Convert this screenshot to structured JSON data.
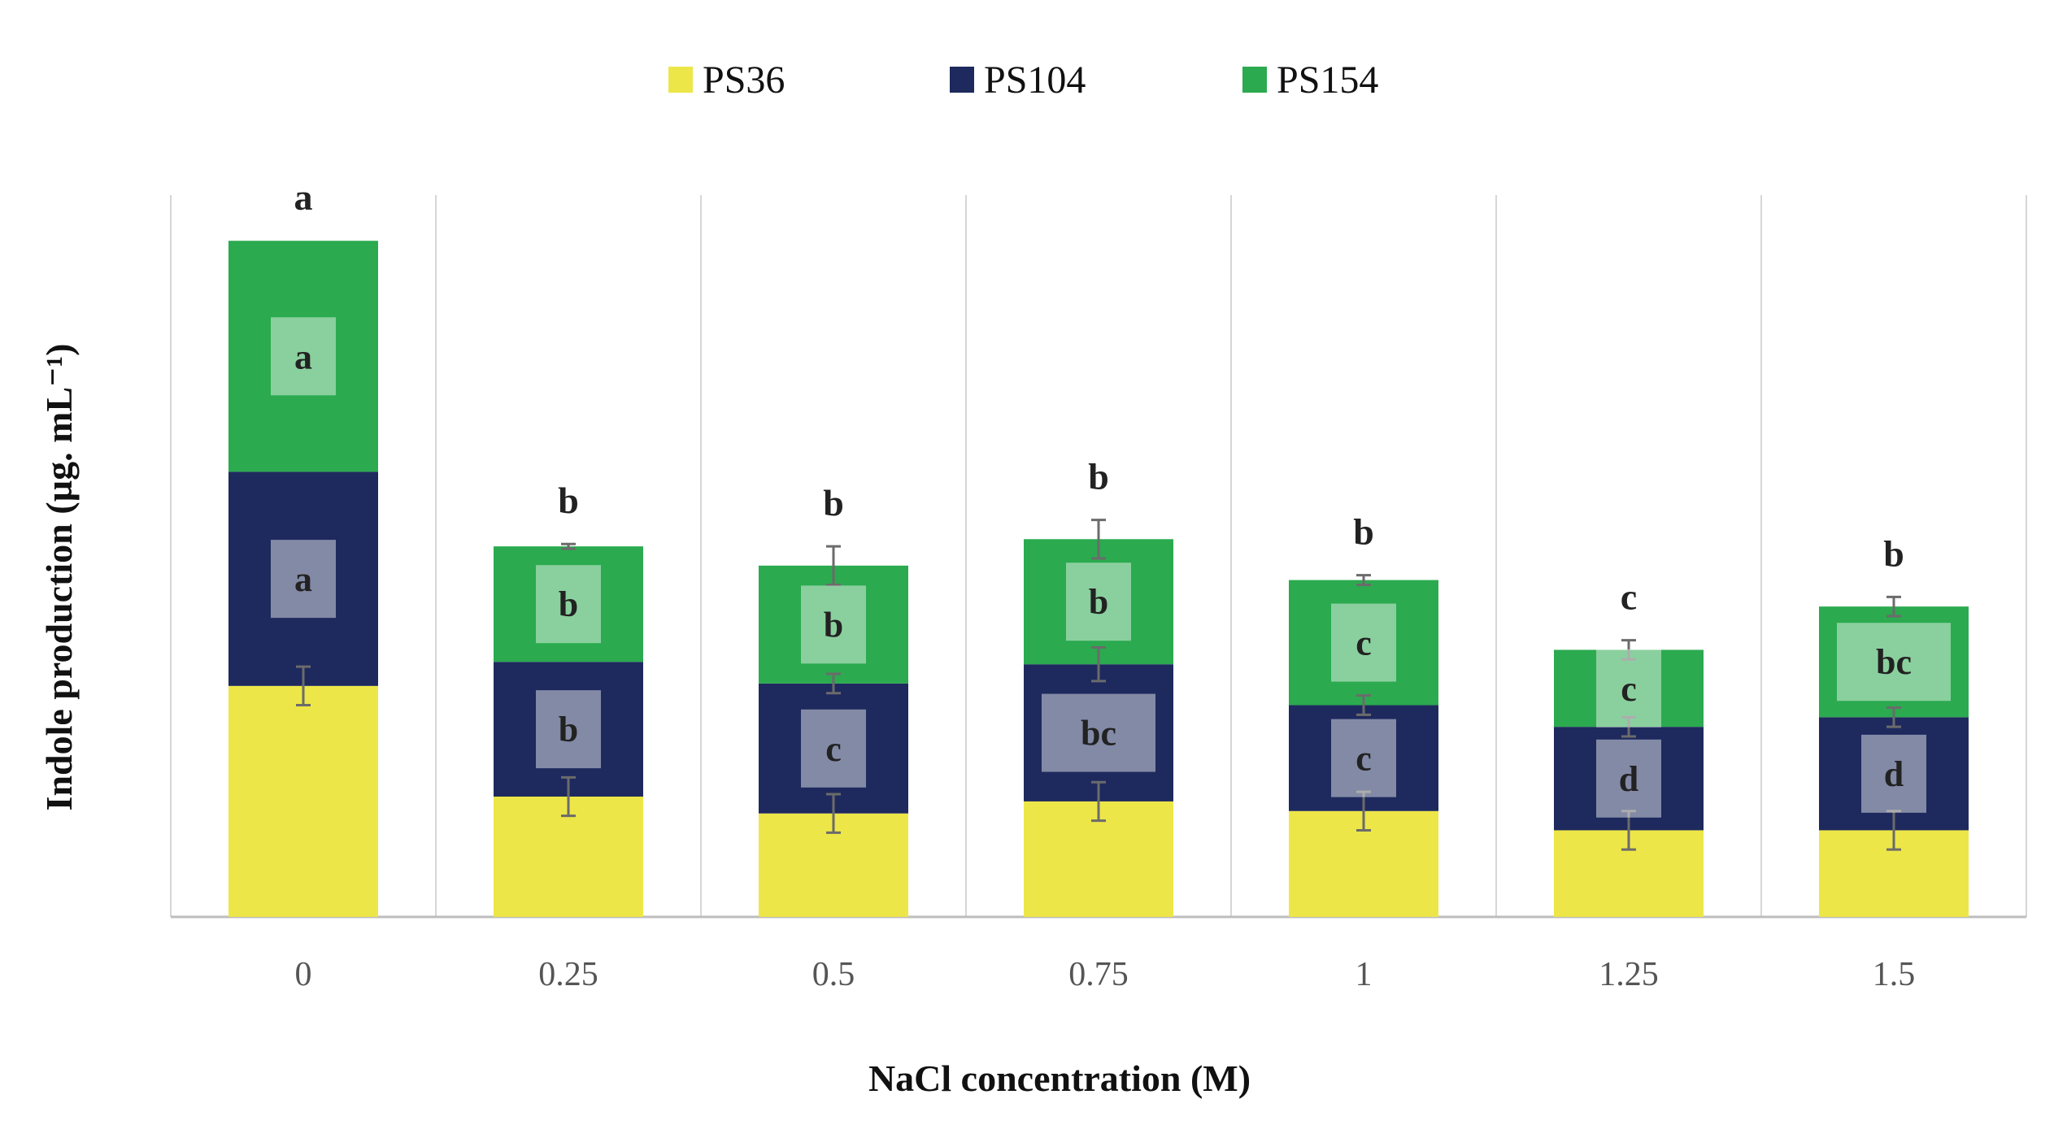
{
  "chart_data": {
    "type": "bar",
    "stacked": true,
    "xlabel": "NaCl concentration (M)",
    "ylabel": "Indole production (µg. mL⁻¹)",
    "categories": [
      "0",
      "0.25",
      "0.5",
      "0.75",
      "1",
      "1.25",
      "1.5"
    ],
    "ylim": [
      0,
      15
    ],
    "y_axis_tick_labels_shown": false,
    "grid": "vertical separators between categories",
    "legend_position": "top",
    "series": [
      {
        "name": "PS36",
        "color": "#EDE648",
        "values": [
          4.8,
          2.5,
          2.15,
          2.4,
          2.2,
          1.8,
          1.8
        ],
        "errors": [
          0.4,
          0.4,
          0.4,
          0.4,
          0.4,
          0.4,
          0.4
        ],
        "significance": [
          "",
          "",
          "",
          "",
          "",
          "",
          ""
        ]
      },
      {
        "name": "PS104",
        "color": "#1E2A5E",
        "values": [
          4.45,
          2.8,
          2.7,
          2.85,
          2.2,
          2.15,
          2.35
        ],
        "errors": [
          0.0,
          0.0,
          0.2,
          0.35,
          0.2,
          0.2,
          0.2
        ],
        "significance": [
          "a",
          "b",
          "c",
          "bc",
          "c",
          "d",
          "d"
        ]
      },
      {
        "name": "PS154",
        "color": "#2BAA4F",
        "values": [
          4.8,
          2.4,
          2.45,
          2.6,
          2.6,
          1.6,
          2.3
        ],
        "errors": [
          0.0,
          0.05,
          0.4,
          0.4,
          0.1,
          0.2,
          0.2
        ],
        "significance": [
          "a",
          "b",
          "b",
          "b",
          "c",
          "c",
          "bc"
        ]
      }
    ],
    "total_significance": [
      "a",
      "b",
      "b",
      "b",
      "b",
      "c",
      "b"
    ]
  }
}
